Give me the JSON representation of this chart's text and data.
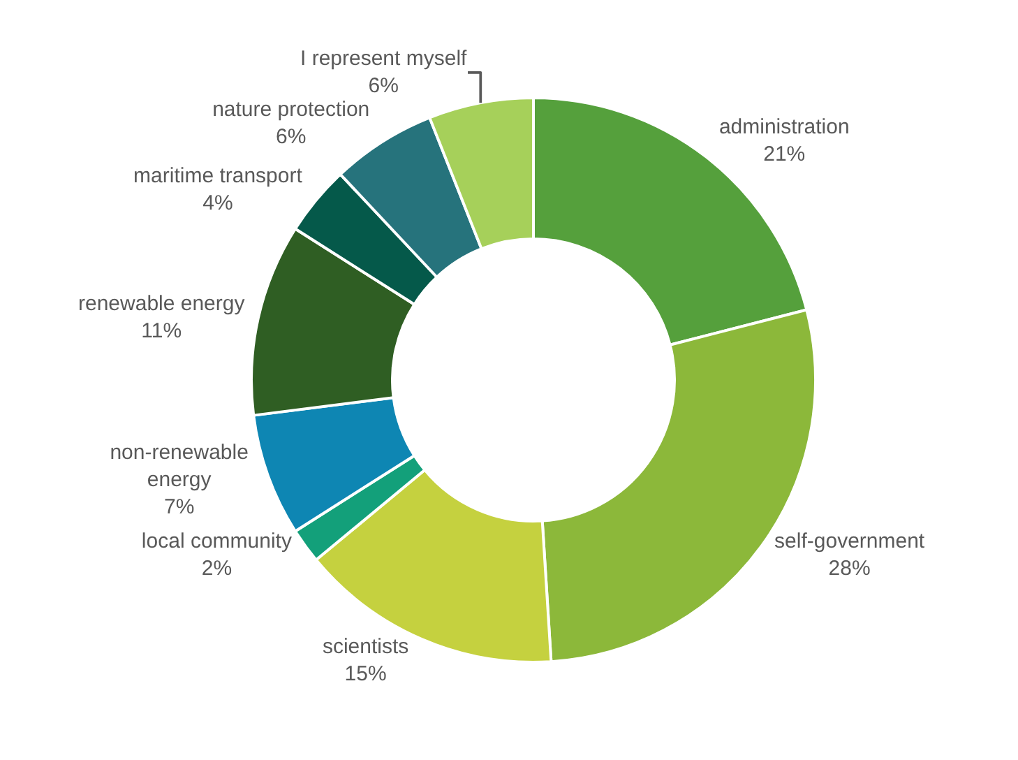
{
  "chart_data": {
    "type": "donut",
    "categories": [
      "administration",
      "self-government",
      "scientists",
      "local community",
      "non-renewable energy",
      "renewable energy",
      "maritime transport",
      "nature protection",
      "I represent myself"
    ],
    "values": [
      21,
      28,
      15,
      2,
      7,
      11,
      4,
      6,
      6
    ],
    "colors": [
      "#55a03c",
      "#8cb83a",
      "#c5d13f",
      "#13a07a",
      "#0e86b3",
      "#2f5e23",
      "#05594a",
      "#26737c",
      "#a6d05a"
    ],
    "value_labels": [
      "21%",
      "28%",
      "15%",
      "2%",
      "7%",
      "11%",
      "4%",
      "6%",
      "6%"
    ],
    "legend": false
  }
}
